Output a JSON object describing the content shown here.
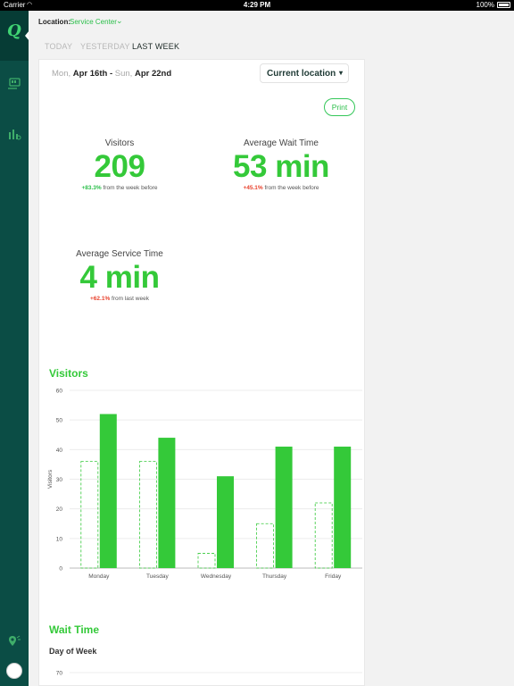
{
  "status_bar": {
    "carrier": "Carrier",
    "time": "4:29 PM",
    "battery": "100%"
  },
  "sidebar": {
    "logo": "Q",
    "icons": [
      "queue-icon",
      "analytics-icon",
      "location-icon",
      "avatar"
    ]
  },
  "header": {
    "location_label": "Location:",
    "location_value": "Service Center",
    "tabs": [
      {
        "label": "TODAY",
        "active": false
      },
      {
        "label": "YESTERDAY",
        "active": false
      },
      {
        "label": "LAST WEEK",
        "active": true
      }
    ]
  },
  "report": {
    "date_from_day": "Mon,",
    "date_from": "Apr 16th",
    "date_sep": " - ",
    "date_to_day": "Sun,",
    "date_to": "Apr 22nd",
    "location_button": "Current location",
    "print_button": "Print"
  },
  "metrics": {
    "visitors": {
      "title": "Visitors",
      "value": "209",
      "delta": "+83.3%",
      "delta_text": " from the week before"
    },
    "wait": {
      "title": "Average Wait Time",
      "value": "53 min",
      "delta": "+45.1%",
      "delta_text": " from the week before"
    },
    "service": {
      "title": "Average Service Time",
      "value": "4 min",
      "delta": "+62.1%",
      "delta_text": " from last week"
    }
  },
  "sections": {
    "visitors_title": "Visitors",
    "wait_title": "Wait Time",
    "wait_subtitle": "Day of Week"
  },
  "colors": {
    "accent": "#34c939",
    "sidebar": "#0b4d45",
    "negative": "#e8412c"
  },
  "chart_data": [
    {
      "type": "bar",
      "title": "Visitors",
      "ylabel": "Visitors",
      "xlabel": "",
      "categories": [
        "Monday",
        "Tuesday",
        "Wednesday",
        "Thursday",
        "Friday"
      ],
      "series": [
        {
          "name": "",
          "style": "dashed-outline",
          "values": [
            36,
            36,
            5,
            15,
            22
          ]
        },
        {
          "name": "",
          "style": "solid",
          "values": [
            52,
            44,
            31,
            41,
            41
          ]
        }
      ],
      "ylim": [
        0,
        60
      ],
      "yticks": [
        0,
        10,
        20,
        30,
        40,
        50,
        60
      ],
      "grid": true
    },
    {
      "type": "bar",
      "title": "Wait Time",
      "subtitle": "Day of Week",
      "yticks_visible": [
        70
      ],
      "grid": true
    }
  ]
}
